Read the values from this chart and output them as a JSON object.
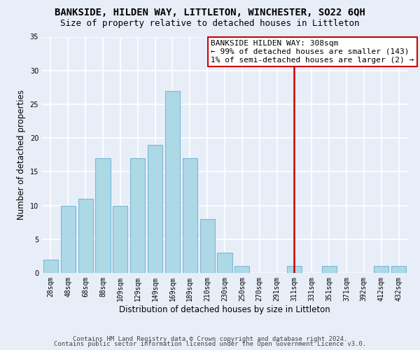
{
  "title": "BANKSIDE, HILDEN WAY, LITTLETON, WINCHESTER, SO22 6QH",
  "subtitle": "Size of property relative to detached houses in Littleton",
  "xlabel": "Distribution of detached houses by size in Littleton",
  "ylabel": "Number of detached properties",
  "bar_labels": [
    "28sqm",
    "48sqm",
    "68sqm",
    "88sqm",
    "109sqm",
    "129sqm",
    "149sqm",
    "169sqm",
    "189sqm",
    "210sqm",
    "230sqm",
    "250sqm",
    "270sqm",
    "291sqm",
    "311sqm",
    "331sqm",
    "351sqm",
    "371sqm",
    "392sqm",
    "412sqm",
    "432sqm"
  ],
  "bar_heights": [
    2,
    10,
    11,
    17,
    10,
    17,
    19,
    27,
    17,
    8,
    3,
    1,
    0,
    0,
    1,
    0,
    1,
    0,
    0,
    1,
    1
  ],
  "bar_color": "#add8e6",
  "bar_edge_color": "#7ab8d4",
  "background_color": "#e8eef8",
  "grid_color": "#ffffff",
  "annotation_box_title": "BANKSIDE HILDEN WAY: 308sqm",
  "annotation_line1": "← 99% of detached houses are smaller (143)",
  "annotation_line2": "1% of semi-detached houses are larger (2) →",
  "vline_x_index": 14,
  "vline_color": "#cc0000",
  "annotation_box_edge_color": "#cc0000",
  "ylim": [
    0,
    35
  ],
  "yticks": [
    0,
    5,
    10,
    15,
    20,
    25,
    30,
    35
  ],
  "footer_line1": "Contains HM Land Registry data © Crown copyright and database right 2024.",
  "footer_line2": "Contains public sector information licensed under the Open Government Licence v3.0.",
  "title_fontsize": 10,
  "subtitle_fontsize": 9,
  "axis_label_fontsize": 8.5,
  "tick_fontsize": 7,
  "annotation_fontsize": 8,
  "footer_fontsize": 6.5
}
